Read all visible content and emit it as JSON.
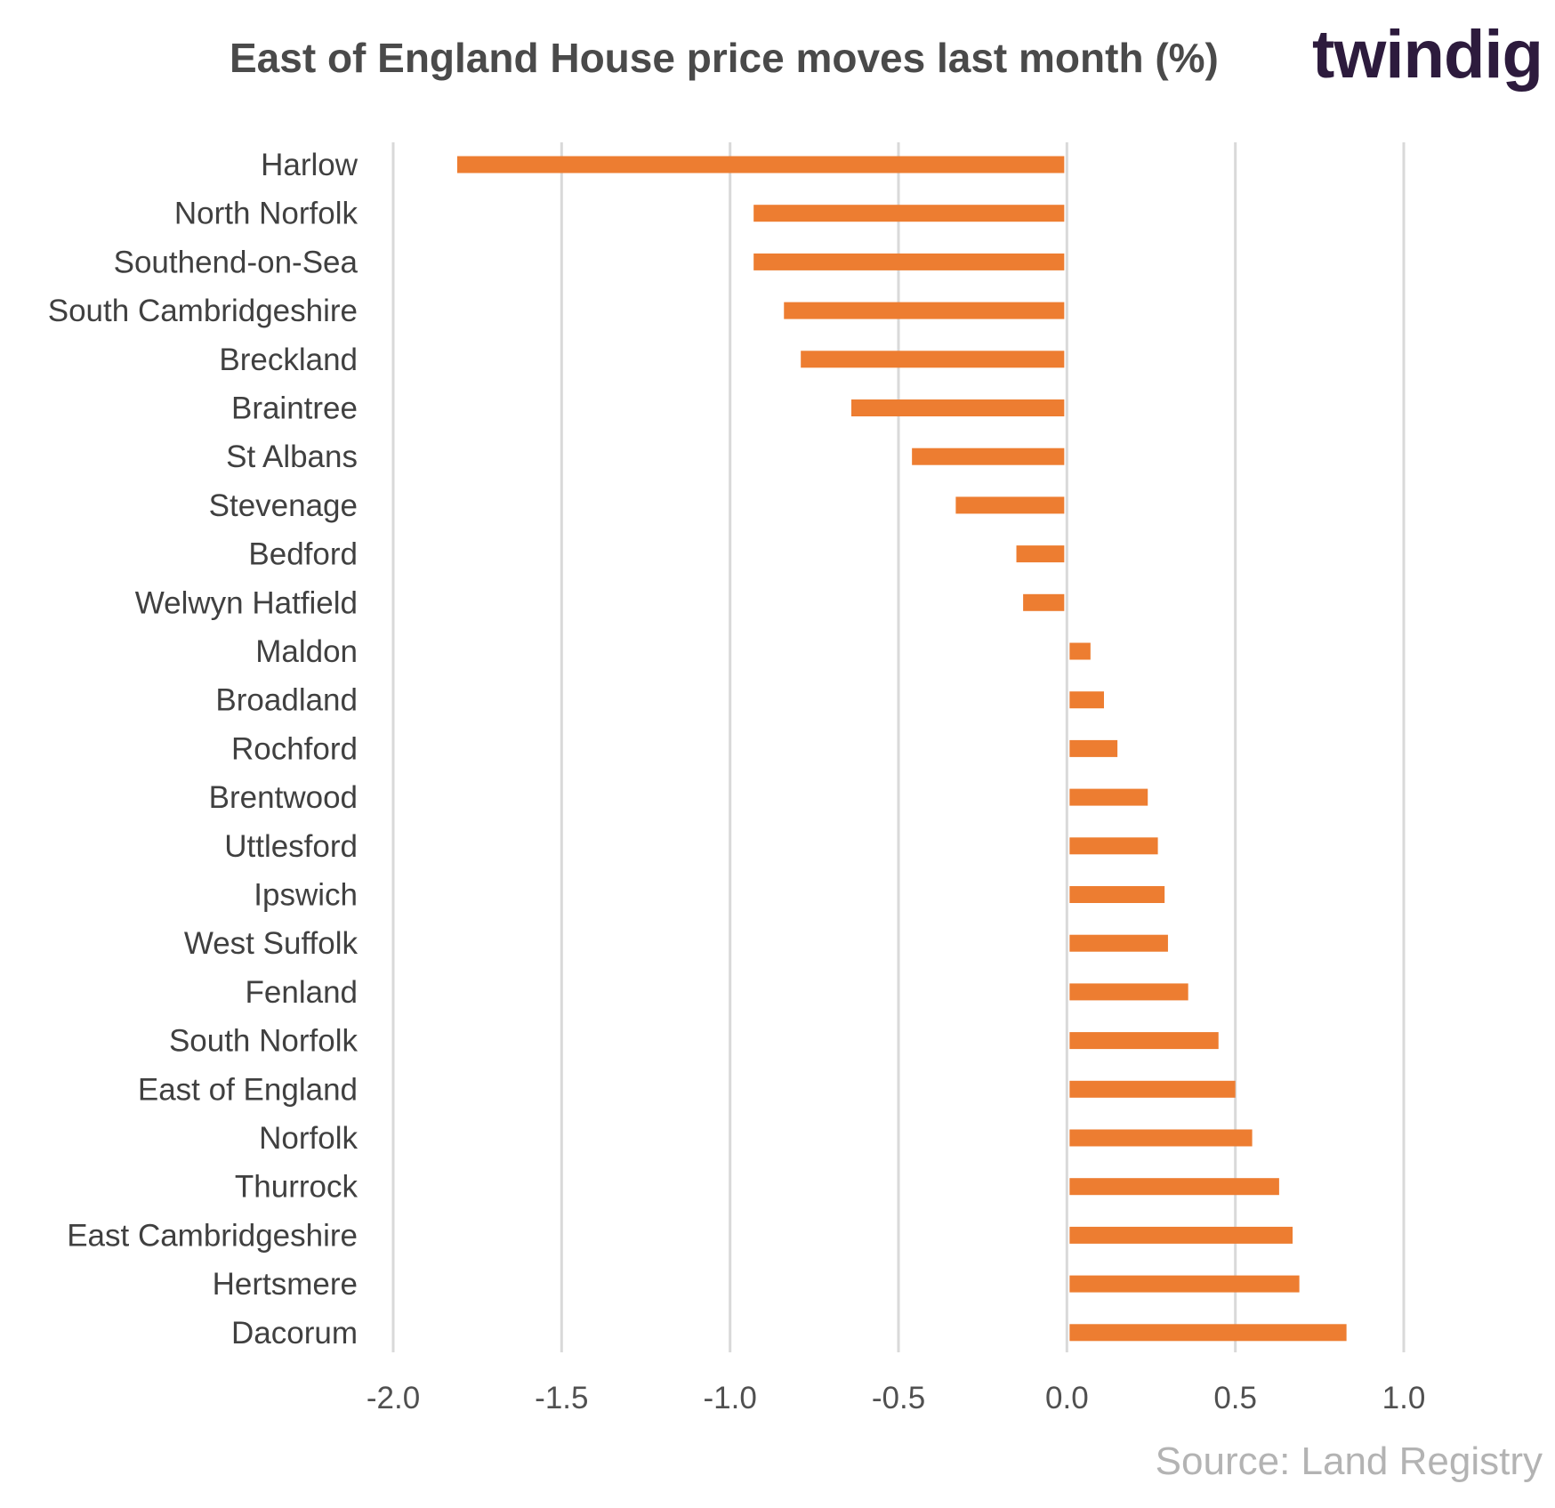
{
  "header": {
    "title": "East of England  House price moves last month (%)",
    "logo_text": "twindig"
  },
  "footer": {
    "source": "Source: Land Registry"
  },
  "colors": {
    "bar": "#ed7d31",
    "grid": "#d9d9d9",
    "logo_text": "#2d1b3d",
    "logo_accent": "#f07a2b"
  },
  "chart_data": {
    "type": "bar",
    "orientation": "horizontal",
    "title": "East of England  House price moves last month (%)",
    "xlabel": "",
    "ylabel": "",
    "xlim": [
      -2.0,
      1.0
    ],
    "grid": true,
    "x_ticks": [
      "-2.0",
      "-1.5",
      "-1.0",
      "-0.5",
      "0.0",
      "0.5",
      "1.0"
    ],
    "categories": [
      "Harlow",
      "North Norfolk",
      "Southend-on-Sea",
      "South Cambridgeshire",
      "Breckland",
      "Braintree",
      "St Albans",
      "Stevenage",
      "Bedford",
      "Welwyn Hatfield",
      "Maldon",
      "Broadland",
      "Rochford",
      "Brentwood",
      "Uttlesford",
      "Ipswich",
      "West Suffolk",
      "Fenland",
      "South Norfolk",
      "East of England",
      "Norfolk",
      "Thurrock",
      "East Cambridgeshire",
      "Hertsmere",
      "Dacorum"
    ],
    "values": [
      -1.81,
      -0.93,
      -0.93,
      -0.84,
      -0.79,
      -0.64,
      -0.46,
      -0.33,
      -0.15,
      -0.13,
      0.07,
      0.11,
      0.15,
      0.24,
      0.27,
      0.29,
      0.3,
      0.36,
      0.45,
      0.5,
      0.55,
      0.63,
      0.67,
      0.69,
      0.83
    ]
  }
}
